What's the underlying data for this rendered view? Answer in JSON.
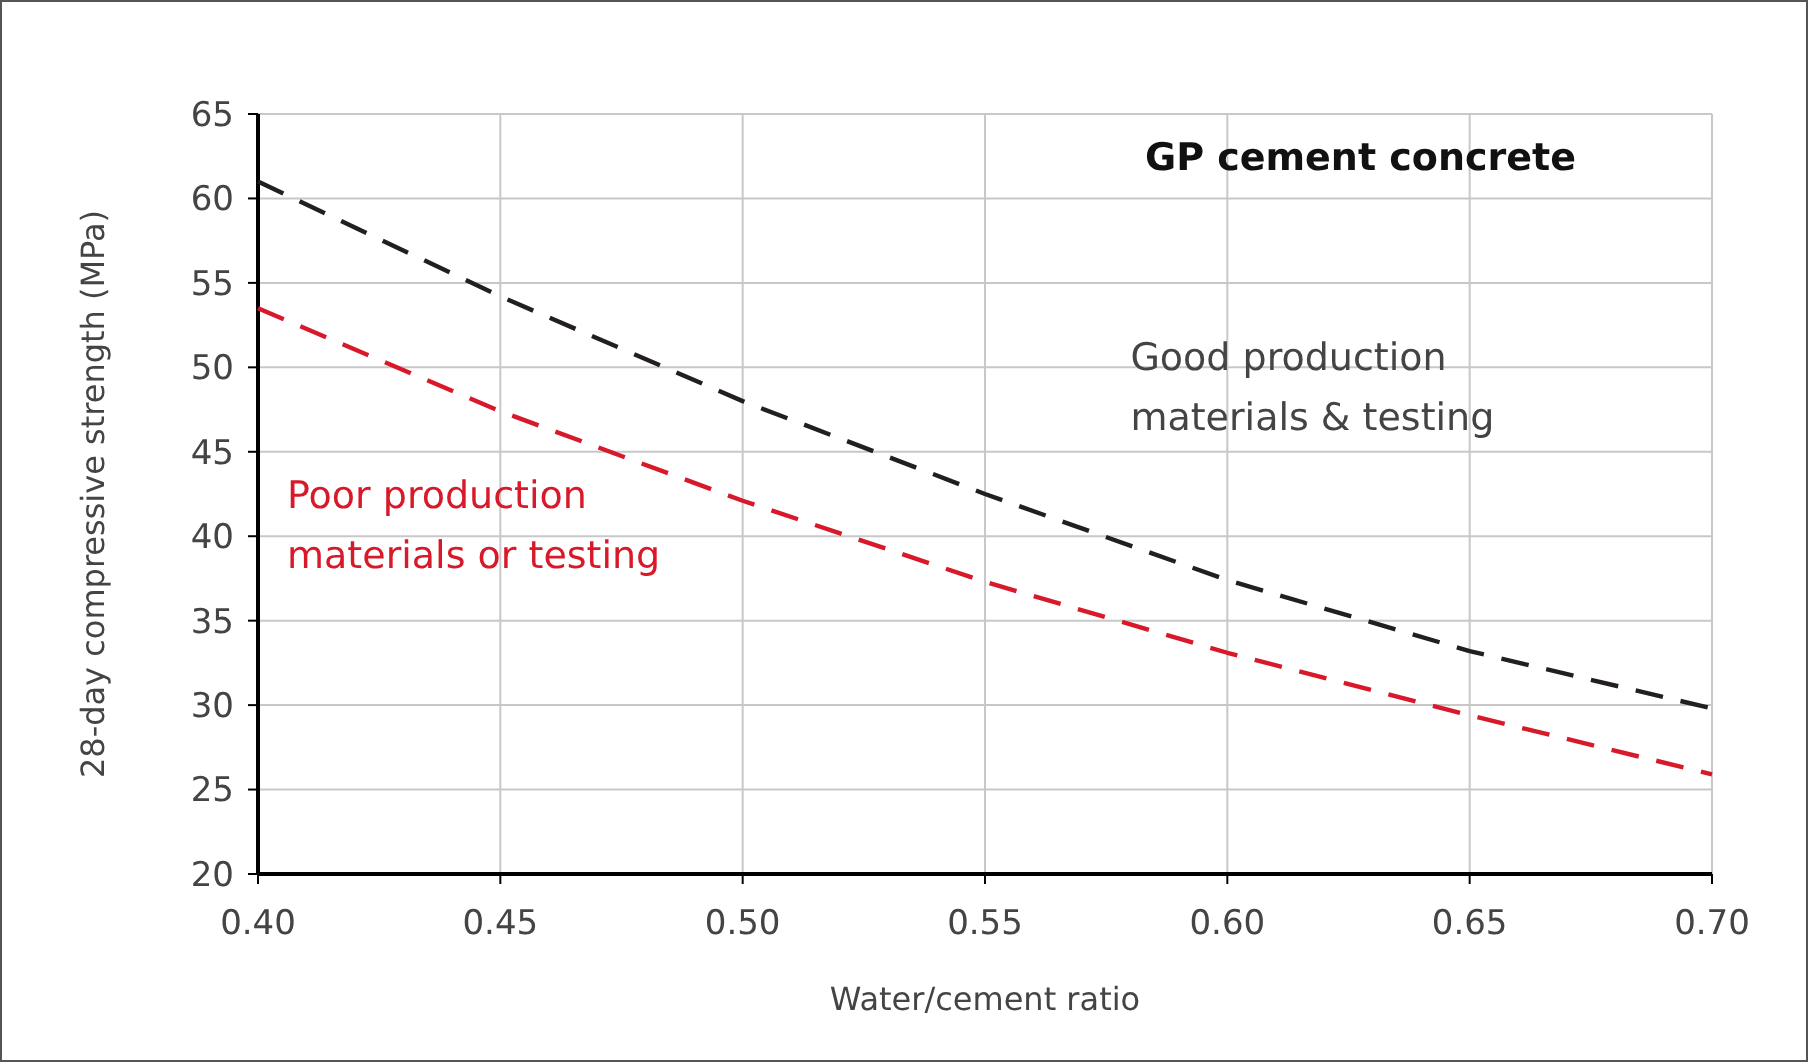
{
  "chart_data": {
    "type": "line",
    "title": "GP cement concrete",
    "xlabel": "Water/cement ratio",
    "ylabel": "28-day compressive strength (MPa)",
    "x": [
      0.4,
      0.45,
      0.5,
      0.55,
      0.6,
      0.65,
      0.7
    ],
    "series": [
      {
        "name": "Good production materials & testing",
        "color": "#231f20",
        "values": [
          61,
          54.2,
          48,
          42.5,
          37.4,
          33.2,
          29.8
        ]
      },
      {
        "name": "Poor production materials or testing",
        "color": "#d7192a",
        "values": [
          53.5,
          47.4,
          42.1,
          37.3,
          33.1,
          29.4,
          25.9
        ]
      }
    ],
    "xlim": [
      0.4,
      0.7
    ],
    "xticks": [
      {
        "value": 0.4,
        "label": "0.40"
      },
      {
        "value": 0.45,
        "label": "0.45"
      },
      {
        "value": 0.5,
        "label": "0.50"
      },
      {
        "value": 0.55,
        "label": "0.55"
      },
      {
        "value": 0.6,
        "label": "0.60"
      },
      {
        "value": 0.65,
        "label": "0.65"
      },
      {
        "value": 0.7,
        "label": "0.70"
      }
    ],
    "ylim": [
      20,
      65
    ],
    "yticks": [
      20,
      25,
      30,
      35,
      40,
      45,
      50,
      55,
      60,
      65
    ],
    "grid": true,
    "line_style": "dashed",
    "marker": "none"
  }
}
